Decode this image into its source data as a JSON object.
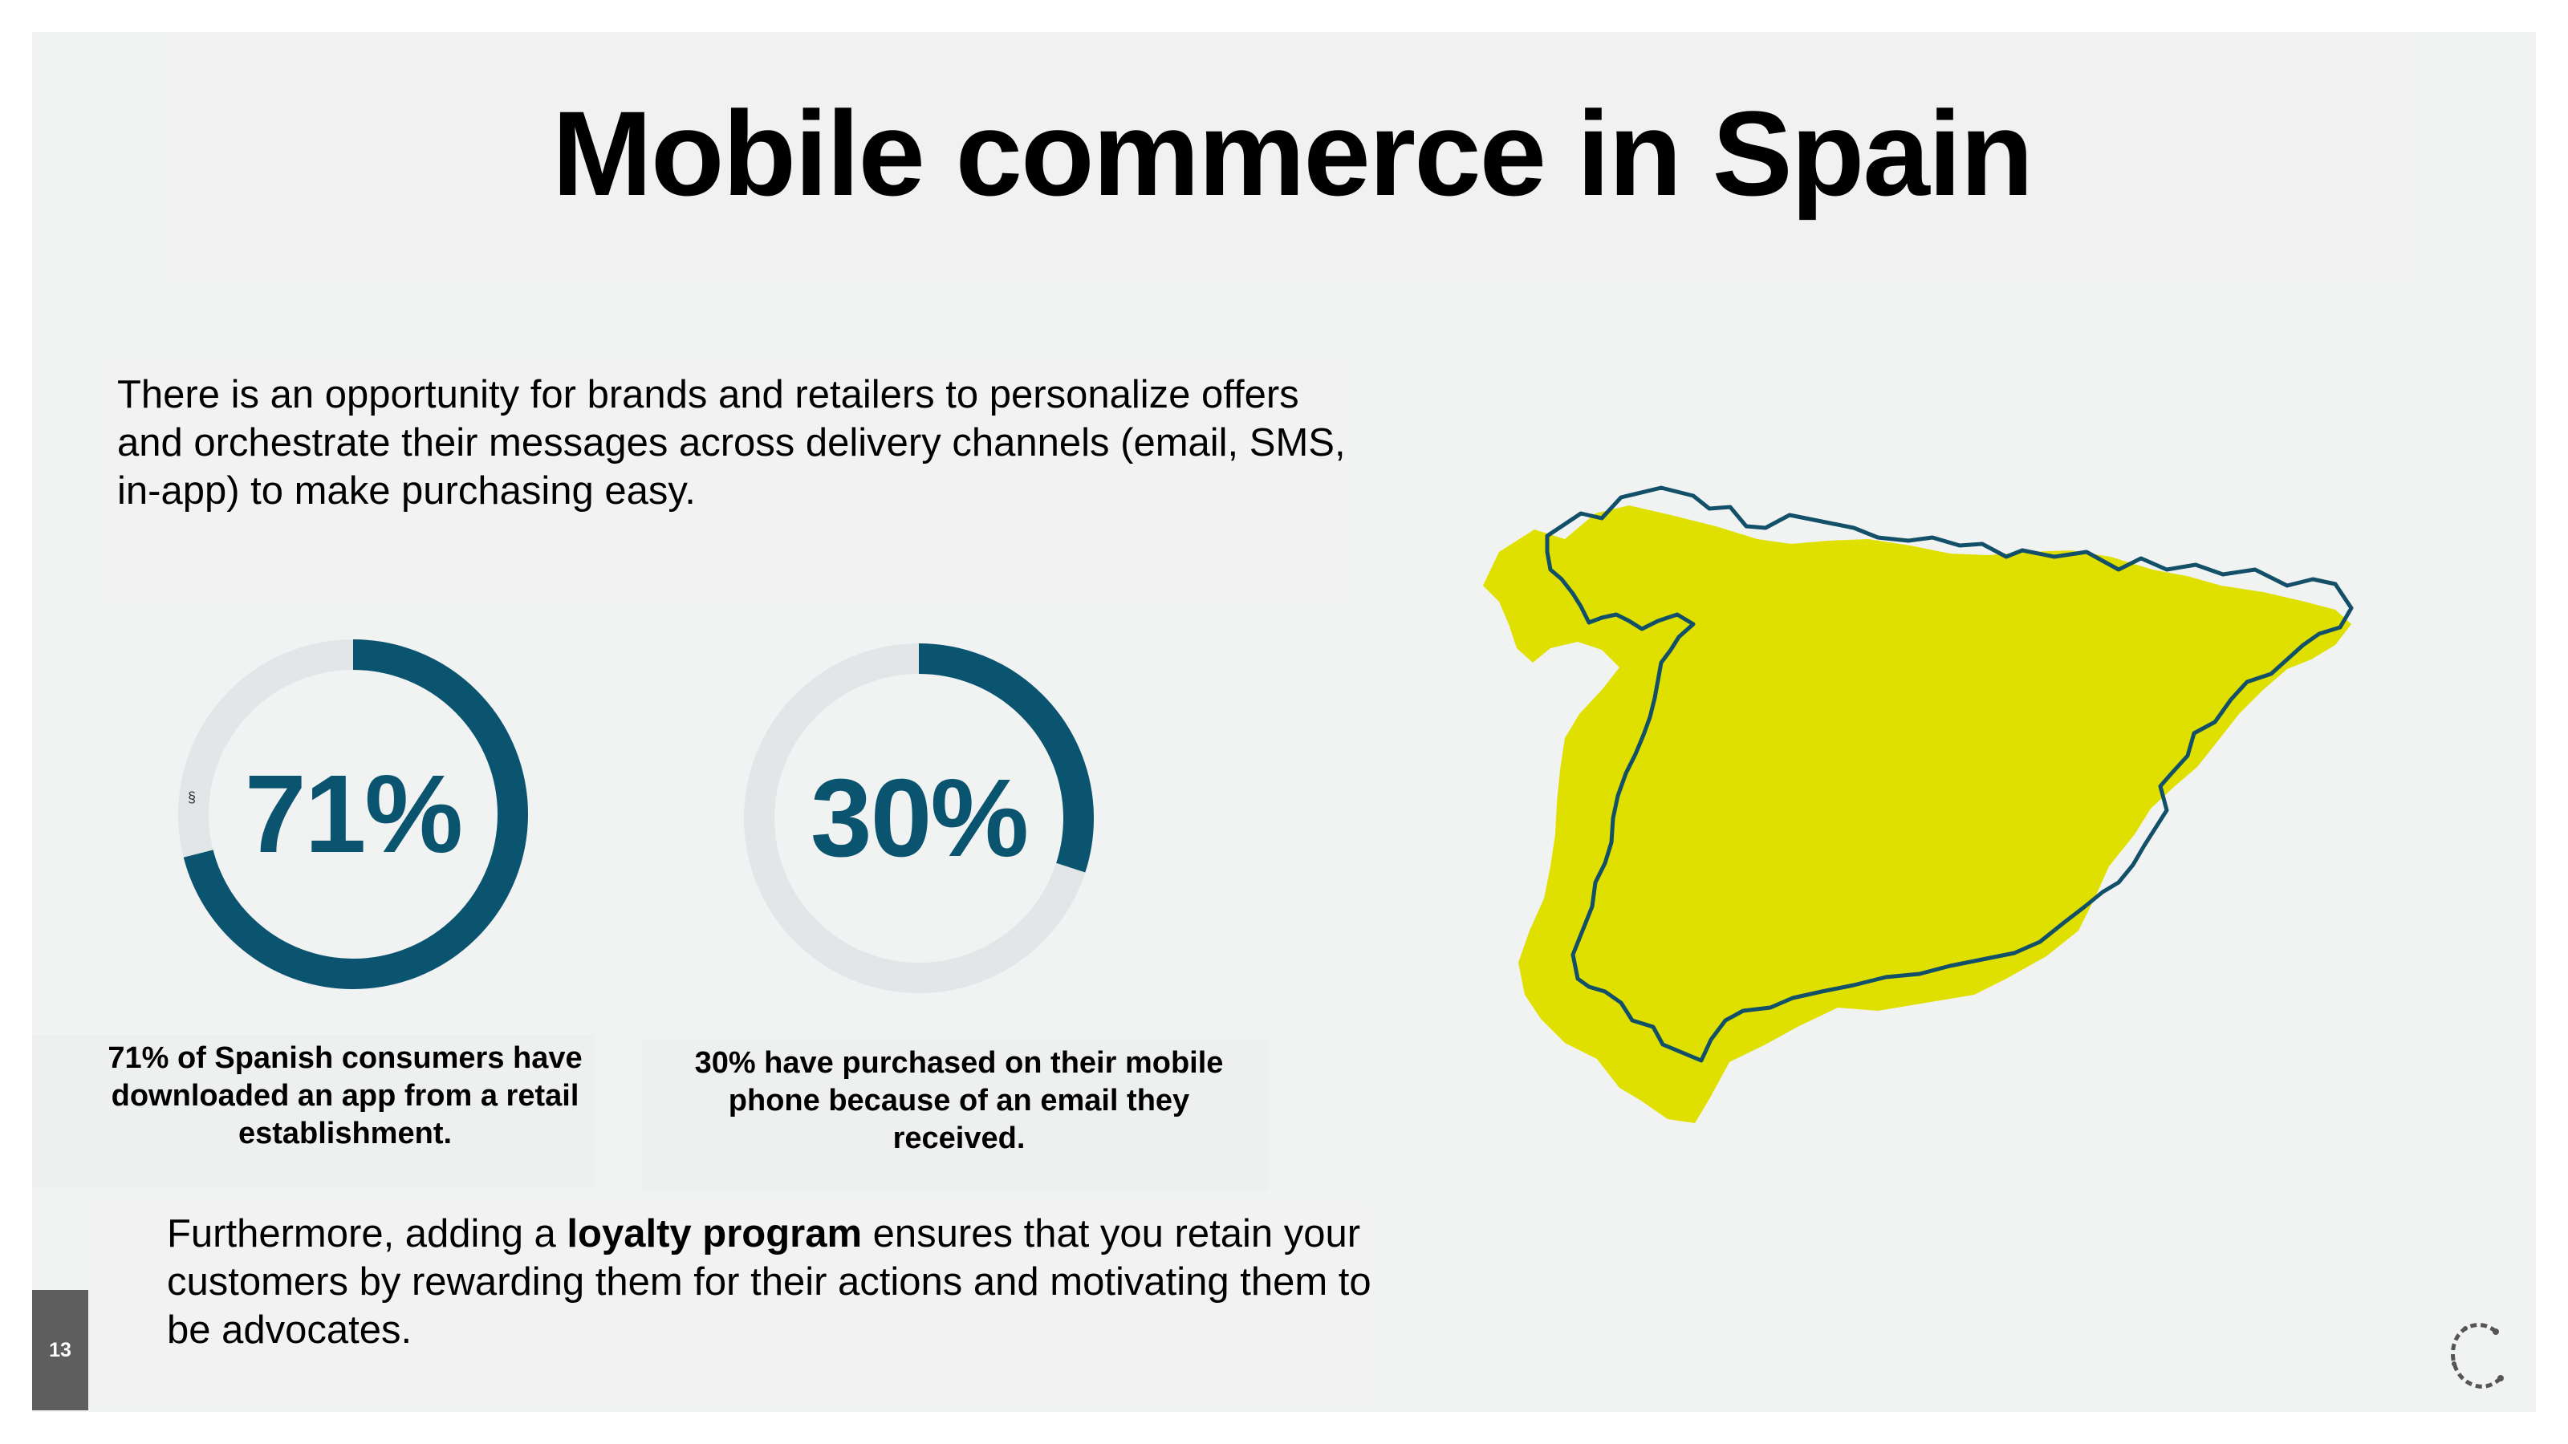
{
  "title": "Mobile commerce in Spain",
  "intro": "There is an opportunity for brands and retailers to personalize offers and orchestrate their messages across delivery channels (email, SMS, in-app) to make purchasing easy.",
  "stats": [
    {
      "value_label": "71%",
      "percent": 71,
      "caption": "71% of Spanish consumers have downloaded an app from a retail establishment."
    },
    {
      "value_label": "30%",
      "percent": 30,
      "caption": "30% have purchased on their mobile phone because of an email they received."
    }
  ],
  "stray_mark": "§",
  "closing": {
    "before": "Furthermore, adding a ",
    "bold": "loyalty program",
    "after": " ensures that you retain your customers by rewarding them for their actions and motivating them to be advocates."
  },
  "page_number": "13",
  "colors": {
    "ring_fill": "#0b5470",
    "ring_track": "#e2e6e8",
    "map_fill": "#dfe000",
    "map_outline": "#124f68",
    "slide_bg": "#f1f2f2"
  },
  "icons": {
    "map": "spain-map-icon",
    "logo": "leaf-c-logo-icon"
  }
}
